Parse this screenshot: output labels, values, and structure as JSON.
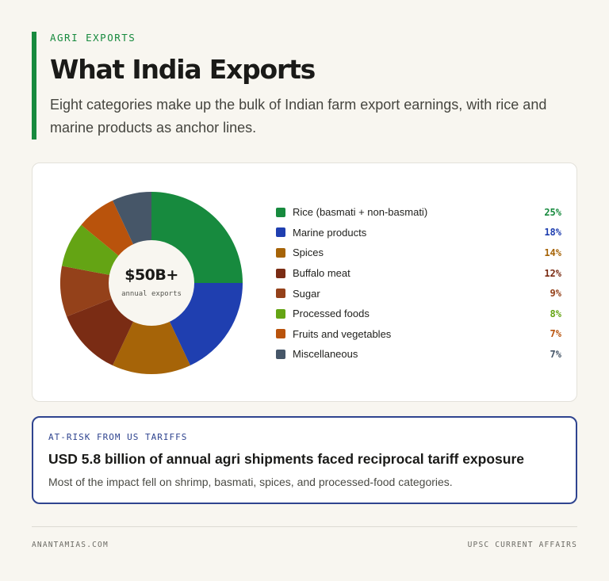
{
  "header": {
    "kicker": "AGRI EXPORTS",
    "title": "What India Exports",
    "subtitle": "Eight categories make up the bulk of Indian farm export earnings, with rice and marine products as anchor lines."
  },
  "chart_data": {
    "type": "pie",
    "center_value": "$50B+",
    "center_label": "annual exports",
    "unit": "%",
    "categories": [
      "Rice (basmati + non-basmati)",
      "Marine products",
      "Spices",
      "Buffalo meat",
      "Sugar",
      "Processed foods",
      "Fruits and vegetables",
      "Miscellaneous"
    ],
    "values": [
      25,
      18,
      14,
      12,
      9,
      8,
      7,
      7
    ],
    "colors": [
      "#178a3e",
      "#1f3fb0",
      "#a66408",
      "#7a2c14",
      "#94411a",
      "#64a414",
      "#b9530c",
      "#465668"
    ],
    "legend_placement": "right"
  },
  "risk": {
    "kicker": "AT-RISK FROM US TARIFFS",
    "headline": "USD 5.8 billion of annual agri shipments faced reciprocal tariff exposure",
    "text": "Most of the impact fell on shrimp, basmati, spices, and processed-food categories."
  },
  "footer": {
    "left": "ANANTAMIAS.COM",
    "right": "UPSC CURRENT AFFAIRS"
  }
}
